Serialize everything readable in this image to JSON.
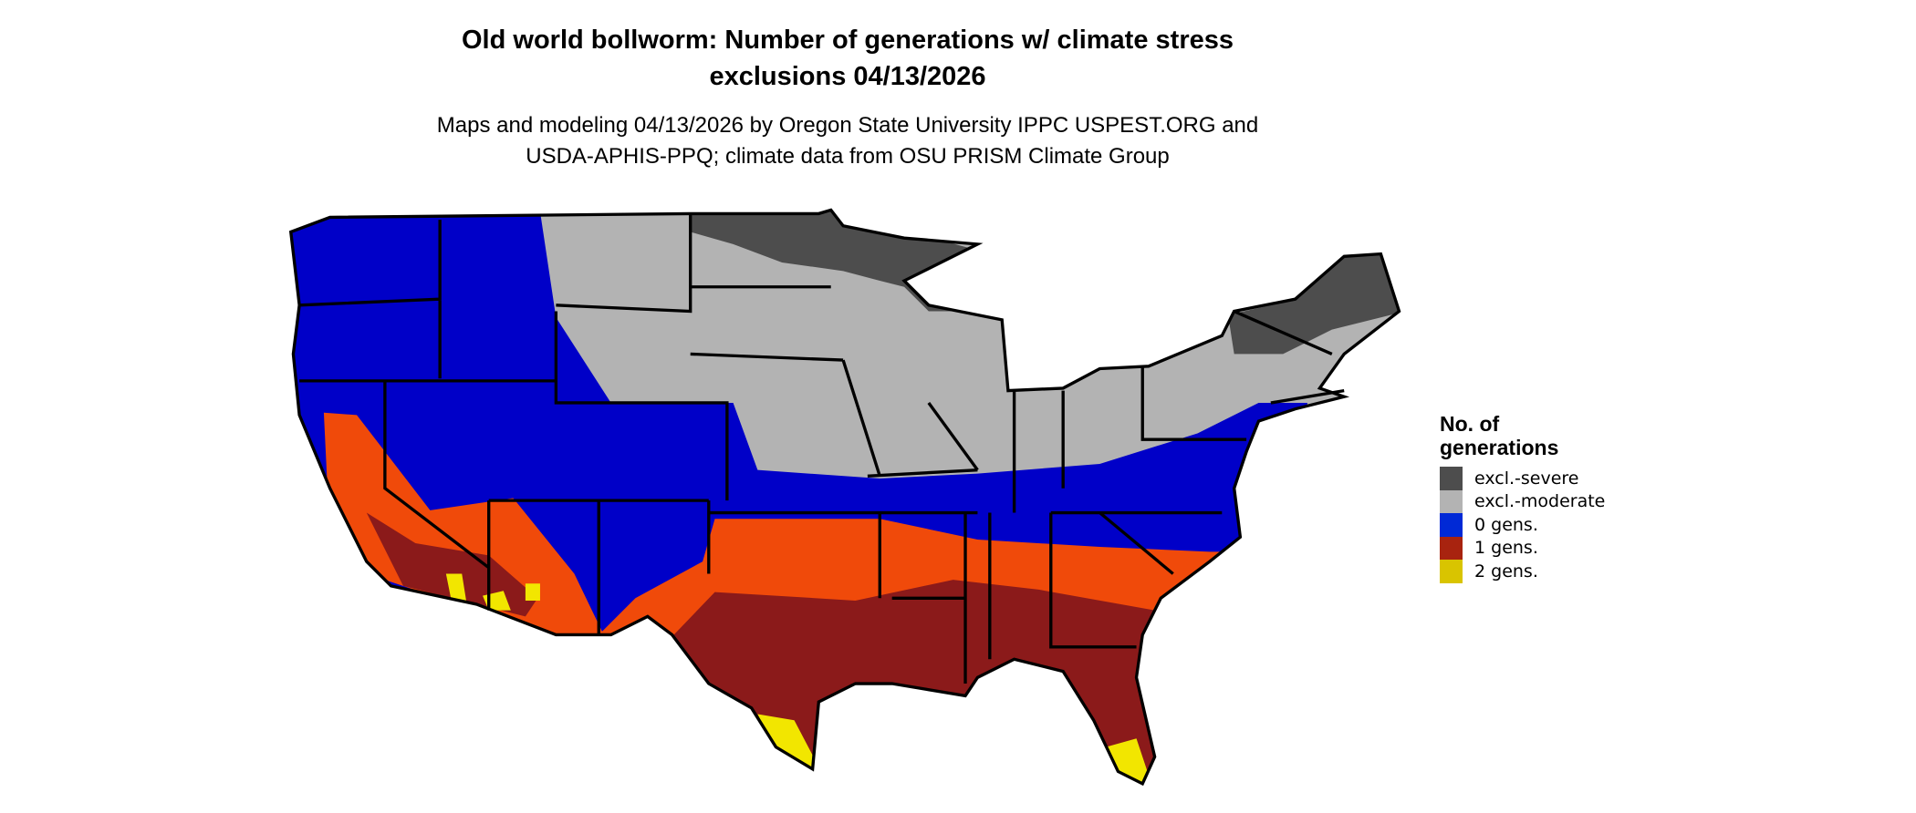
{
  "title_line1": "Old world bollworm: Number of generations w/ climate stress",
  "title_line2": "exclusions 04/13/2026",
  "subtitle_line1": "Maps and modeling 04/13/2026 by Oregon State University IPPC USPEST.ORG and",
  "subtitle_line2": "USDA-APHIS-PPQ; climate data from OSU PRISM Climate Group",
  "legend": {
    "title_line1": "No. of",
    "title_line2": "generations",
    "items": [
      {
        "label": "excl.-severe",
        "color": "#4d4d4d"
      },
      {
        "label": "excl.-moderate",
        "color": "#b3b3b3"
      },
      {
        "label": "0 gens.",
        "color": "#0029d6"
      },
      {
        "label": "1 gens.",
        "color": "#a8230f"
      },
      {
        "label": "2 gens.",
        "color": "#d9c400"
      }
    ]
  },
  "map_colors": {
    "severe": "#4d4d4d",
    "moderate": "#b3b3b3",
    "zero": "#0000c8",
    "one_low": "#f04a0a",
    "one": "#8b1a1a",
    "two": "#f2e600",
    "water": "#ffffff",
    "border": "#000000"
  }
}
